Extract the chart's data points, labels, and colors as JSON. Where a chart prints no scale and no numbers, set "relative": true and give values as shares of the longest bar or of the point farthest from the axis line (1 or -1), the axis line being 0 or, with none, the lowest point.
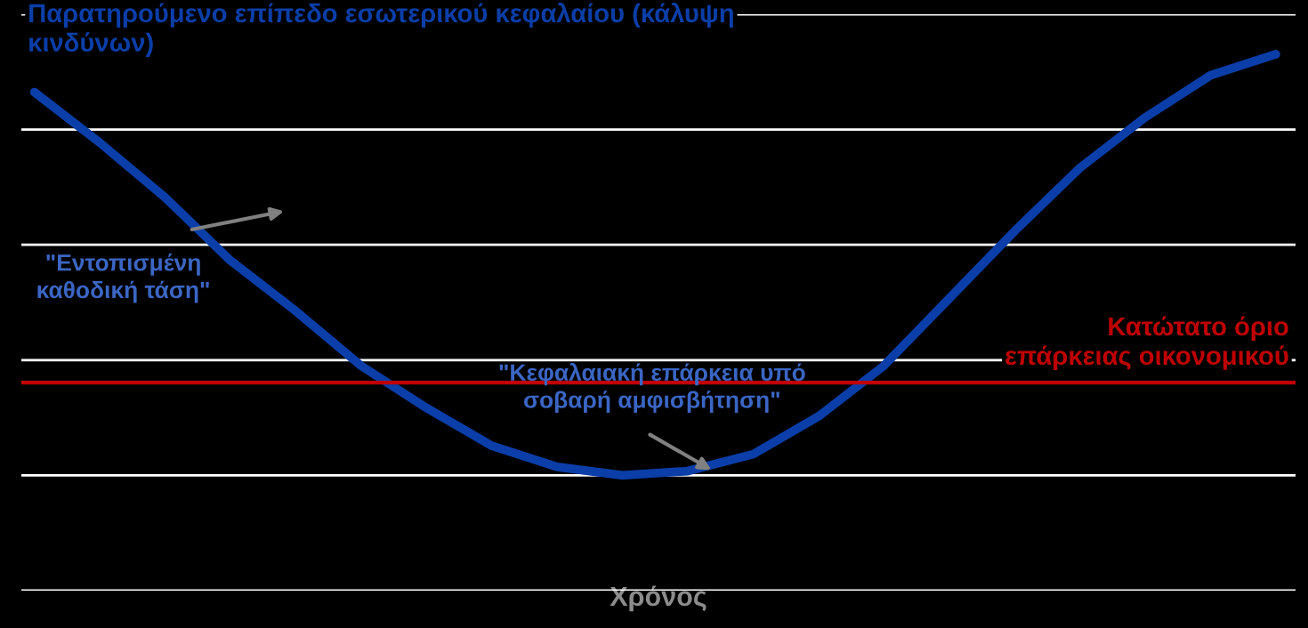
{
  "chart_data": {
    "type": "line",
    "relative": true,
    "xlabel": "Χρόνος",
    "categories": [
      null,
      null,
      null,
      null,
      null,
      null,
      null,
      null,
      null,
      null,
      null,
      null,
      null,
      null,
      null,
      null,
      null,
      null,
      null,
      null
    ],
    "series": [
      {
        "name": "Παρατηρούμενο επίπεδο εσωτερικού κεφαλαίου (κάλυψη κινδύνων)",
        "color": "#0b3ea8",
        "values": [
          0.91,
          0.79,
          0.66,
          0.51,
          0.39,
          0.26,
          0.16,
          0.07,
          0.02,
          0,
          0.01,
          0.05,
          0.14,
          0.26,
          0.42,
          0.58,
          0.73,
          0.85,
          0.95,
          1
        ]
      }
    ],
    "ref_lines": [
      {
        "axis": "y",
        "value": 0.22,
        "label": "Κατώτατο όριο επάρκειας οικονομικού",
        "color": "#c00000"
      }
    ],
    "annotations": [
      "\"Εντοπισμένη καθοδική τάση\"",
      "\"Κεφαλαιακή επάρκεια υπό σοβαρή αμφισβήτηση\""
    ],
    "grid": "y",
    "legend": false,
    "tick_labels": false,
    "marker": "none",
    "line_style": "solid"
  }
}
